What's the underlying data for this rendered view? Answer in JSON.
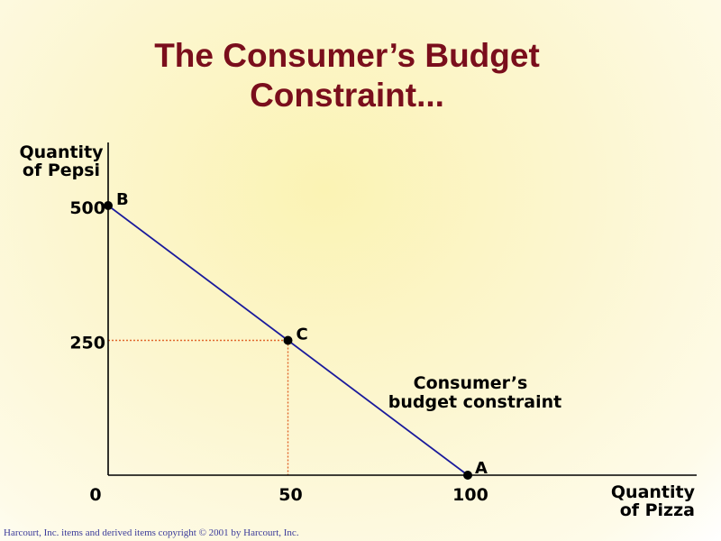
{
  "title_line1": "The Consumer’s Budget",
  "title_line2": "Constraint...",
  "footer": "Harcourt, Inc. items and derived items copyright © 2001 by Harcourt, Inc.",
  "colors": {
    "title": "#7a0e1c",
    "line": "#1a1a9c",
    "guide": "#e0662c",
    "axis": "#000000"
  },
  "chart_data": {
    "type": "line",
    "xlabel_line1": "Quantity",
    "xlabel_line2": "of Pizza",
    "ylabel_line1": "Quantity",
    "ylabel_line2": "of Pepsi",
    "xlim": [
      0,
      166
    ],
    "ylim": [
      0,
      620
    ],
    "xticks": [
      0,
      50,
      100
    ],
    "yticks": [
      250,
      500
    ],
    "series": [
      {
        "values": [
          {
            "x": 0,
            "y": 500
          },
          {
            "x": 100,
            "y": 0
          }
        ]
      }
    ],
    "points": [
      {
        "label": "B",
        "x": 0,
        "y": 500
      },
      {
        "label": "C",
        "x": 50,
        "y": 250
      },
      {
        "label": "A",
        "x": 100,
        "y": 0
      }
    ],
    "guide_lines": [
      {
        "x": 50,
        "y": 250
      }
    ],
    "annotation_line1": "Consumer’s",
    "annotation_line2": "budget constraint"
  }
}
